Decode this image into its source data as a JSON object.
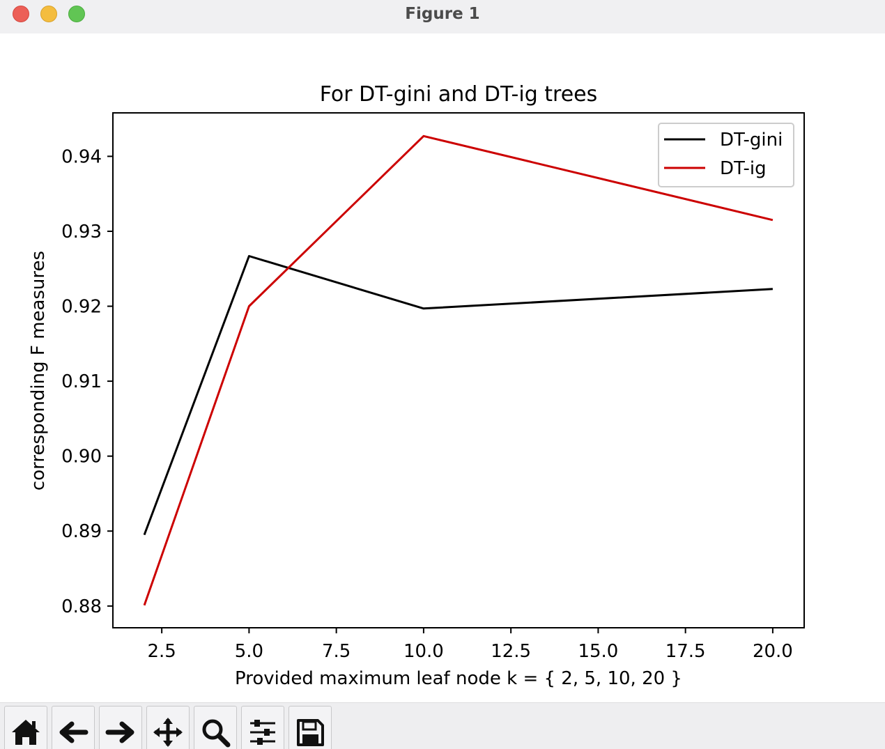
{
  "window": {
    "title": "Figure 1"
  },
  "toolbar": {
    "buttons": [
      {
        "icon": "home-icon"
      },
      {
        "icon": "back-arrow-icon"
      },
      {
        "icon": "forward-arrow-icon"
      },
      {
        "icon": "pan-icon"
      },
      {
        "icon": "zoom-icon"
      },
      {
        "icon": "configure-subplots-icon"
      },
      {
        "icon": "save-icon"
      }
    ]
  },
  "chart_data": {
    "type": "line",
    "title": "For DT-gini and DT-ig trees",
    "xlabel": "Provided maximum leaf node k = { 2, 5, 10, 20 }",
    "ylabel": "corresponding F measures",
    "x": [
      2,
      5,
      10,
      20
    ],
    "xlim": [
      1.1,
      20.9
    ],
    "ylim": [
      0.8771,
      0.9458
    ],
    "xticks": [
      "2.5",
      "5.0",
      "7.5",
      "10.0",
      "12.5",
      "15.0",
      "17.5",
      "20.0"
    ],
    "yticks": [
      "0.88",
      "0.89",
      "0.90",
      "0.91",
      "0.92",
      "0.93",
      "0.94"
    ],
    "grid": false,
    "legend_position": "upper right",
    "series": [
      {
        "name": "DT-gini",
        "color": "#000000",
        "values": [
          0.8895,
          0.9267,
          0.9197,
          0.9223
        ]
      },
      {
        "name": "DT-ig",
        "color": "#cc0000",
        "values": [
          0.8801,
          0.92,
          0.9427,
          0.9315
        ]
      }
    ]
  }
}
